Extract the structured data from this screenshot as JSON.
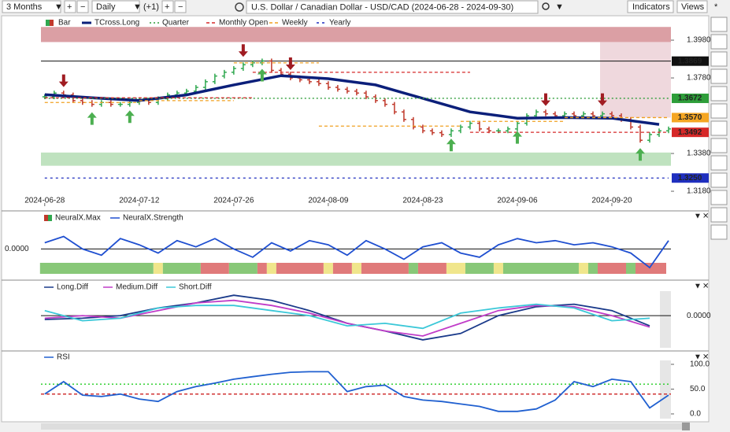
{
  "toolbar": {
    "period": "3 Months",
    "interval": "Daily",
    "offset": "(+1)",
    "title": "U.S. Dollar / Canadian Dollar - USD/CAD (2024-06-28 - 2024-09-30)",
    "indicators": "Indicators",
    "views": "Views",
    "pin": "*"
  },
  "x_axis": {
    "xlim": [
      -0.4,
      66.25
    ],
    "xticks": [
      {
        "value": 0,
        "label": "2024-06-28"
      },
      {
        "value": 10,
        "label": "2024-07-12"
      },
      {
        "value": 20,
        "label": "2024-07-26"
      },
      {
        "value": 30,
        "label": "2024-08-09"
      },
      {
        "value": 40,
        "label": "2024-08-23"
      },
      {
        "value": 50,
        "label": "2024-09-06"
      },
      {
        "value": 60,
        "label": "2024-09-20"
      }
    ]
  },
  "price_panel": {
    "ylim": [
      1.3101,
      1.4051
    ],
    "yticks": [
      {
        "value": 1.398,
        "label": "1.3980"
      },
      {
        "value": 1.378,
        "label": "1.3780"
      },
      {
        "value": 1.338,
        "label": "1.3380"
      },
      {
        "value": 1.318,
        "label": "1.3180"
      }
    ],
    "zones": [
      {
        "from": 1.405,
        "to": 1.397,
        "color": "#cf7f86"
      },
      {
        "from": 1.3385,
        "to": 1.3315,
        "color": "#a9d8a9"
      }
    ],
    "series": [
      {
        "name": "Bar",
        "type": "bar",
        "up_color": "#2fa84f",
        "down_color": "#c0392b",
        "values": [
          1.368,
          1.37,
          1.369,
          1.366,
          1.365,
          1.364,
          1.365,
          1.364,
          1.364,
          1.365,
          1.366,
          1.365,
          1.367,
          1.369,
          1.37,
          1.371,
          1.373,
          1.376,
          1.379,
          1.381,
          1.383,
          1.385,
          1.386,
          1.387,
          1.382,
          1.38,
          1.378,
          1.377,
          1.376,
          1.375,
          1.373,
          1.372,
          1.371,
          1.37,
          1.368,
          1.366,
          1.364,
          1.36,
          1.356,
          1.352,
          1.35,
          1.349,
          1.348,
          1.35,
          1.352,
          1.354,
          1.351,
          1.35,
          1.35,
          1.351,
          1.354,
          1.358,
          1.36,
          1.359,
          1.358,
          1.359,
          1.358,
          1.359,
          1.358,
          1.359,
          1.358,
          1.356,
          1.352,
          1.345,
          1.348,
          1.35,
          1.351
        ]
      },
      {
        "name": "TCross.Long",
        "type": "line",
        "color": "#0b1f7a",
        "x": [
          0,
          5,
          10,
          15,
          20,
          25,
          30,
          35,
          40,
          45,
          50,
          55,
          60,
          65
        ],
        "values": [
          1.3692,
          1.3675,
          1.366,
          1.369,
          1.3743,
          1.3792,
          1.3776,
          1.3743,
          1.3672,
          1.36,
          1.3567,
          1.357,
          1.3567,
          1.3534
        ]
      },
      {
        "name": "Quarter",
        "type": "step",
        "color": "#2e9e3a",
        "dash": "2 3",
        "segments": [
          [
            0,
            66,
            1.3672
          ]
        ]
      },
      {
        "name": "Monthly Open",
        "type": "step",
        "color": "#d62828",
        "dash": "4 3",
        "segments": [
          [
            0,
            22,
            1.3675
          ],
          [
            22,
            45,
            1.381
          ],
          [
            45,
            66,
            1.3492
          ]
        ]
      },
      {
        "name": "Weekly",
        "type": "step",
        "color": "#f0a020",
        "dash": "4 3",
        "segments": [
          [
            0,
            10,
            1.365
          ],
          [
            10,
            20,
            1.366
          ],
          [
            20,
            29,
            1.386
          ],
          [
            29,
            44,
            1.3525
          ],
          [
            44,
            55,
            1.355
          ],
          [
            55,
            66,
            1.357
          ]
        ]
      },
      {
        "name": "Yearly",
        "type": "step",
        "color": "#1f2fbf",
        "dash": "3 4",
        "segments": [
          [
            0,
            66,
            1.325
          ]
        ]
      }
    ],
    "levels": [
      {
        "value": 1.3869,
        "color": "#111111",
        "line": true
      },
      {
        "value": 1.3672,
        "color": "#2e9e3a"
      },
      {
        "value": 1.357,
        "label": "1.3570",
        "color": "#f5a623"
      },
      {
        "value": 1.3492,
        "color": "#d62828"
      },
      {
        "value": 1.325,
        "label": "1.3250",
        "color": "#1f2fbf"
      }
    ]
  },
  "neural_panel": {
    "ylim": [
      -1.2,
      1.0
    ],
    "yticks": [
      {
        "value": 0,
        "label": "0.0000"
      }
    ],
    "legend": [
      "NeuralX.Max"
    ],
    "series": [
      {
        "name": "NeuralX.Strength",
        "color": "#1f4fd0",
        "x": [
          0,
          2,
          4,
          6,
          8,
          10,
          12,
          14,
          16,
          18,
          20,
          22,
          24,
          26,
          28,
          30,
          32,
          34,
          36,
          38,
          40,
          42,
          44,
          46,
          48,
          50,
          52,
          54,
          56,
          58,
          60,
          62,
          64,
          66
        ],
        "values": [
          0.3,
          0.6,
          0,
          -0.3,
          0.5,
          0.2,
          -0.2,
          0.4,
          0.1,
          0.5,
          0,
          -0.4,
          0.3,
          -0.1,
          0.4,
          0.2,
          -0.3,
          0.4,
          0,
          -0.5,
          0.1,
          0.3,
          -0.2,
          -0.4,
          0.2,
          0.5,
          0.3,
          0.4,
          0.2,
          0.3,
          0.1,
          -0.2,
          -0.9,
          0.4
        ]
      }
    ]
  },
  "diff_panel": {
    "ylim": [
      -1.2,
      0.9
    ],
    "yticks": [
      {
        "value": 0,
        "label": "0.0000"
      }
    ],
    "series": [
      {
        "name": "Long.Diff",
        "color": "#1a3a8a",
        "x": [
          0,
          4,
          8,
          12,
          16,
          20,
          24,
          28,
          32,
          36,
          40,
          44,
          48,
          52,
          56,
          60,
          64
        ],
        "values": [
          -0.15,
          -0.1,
          0,
          0.3,
          0.5,
          0.8,
          0.6,
          0.2,
          -0.3,
          -0.6,
          -0.95,
          -0.7,
          0,
          0.35,
          0.45,
          0.2,
          -0.4
        ]
      },
      {
        "name": "Medium.Diff",
        "color": "#c03cc8",
        "x": [
          0,
          4,
          8,
          12,
          16,
          20,
          24,
          28,
          32,
          36,
          40,
          44,
          48,
          52,
          56,
          60,
          64
        ],
        "values": [
          -0.1,
          0,
          -0.1,
          0.2,
          0.5,
          0.6,
          0.4,
          0.1,
          -0.3,
          -0.6,
          -0.8,
          -0.3,
          0.2,
          0.4,
          0.35,
          0,
          -0.45
        ]
      },
      {
        "name": "Short.Diff",
        "color": "#3cc8d8",
        "x": [
          0,
          4,
          8,
          12,
          16,
          20,
          24,
          28,
          32,
          36,
          40,
          44,
          48,
          52,
          56,
          60,
          64
        ],
        "values": [
          0.2,
          -0.2,
          -0.1,
          0.3,
          0.4,
          0.4,
          0.2,
          0,
          -0.4,
          -0.3,
          -0.5,
          0.1,
          0.3,
          0.45,
          0.3,
          -0.2,
          -0.1
        ]
      }
    ]
  },
  "rsi_panel": {
    "ylim": [
      -6.35,
      104.76
    ],
    "yticks": [
      {
        "value": 100,
        "label": "100.0"
      },
      {
        "value": 50,
        "label": "50.0"
      },
      {
        "value": 0,
        "label": "0.0"
      }
    ],
    "levels": [
      {
        "value": 60,
        "color": "#22cc22",
        "dash": "2 3"
      },
      {
        "value": 40,
        "color": "#cc2222",
        "dash": "4 3"
      }
    ],
    "series": [
      {
        "name": "RSI",
        "color": "#2060d0",
        "x": [
          0,
          2,
          4,
          6,
          8,
          10,
          12,
          14,
          16,
          18,
          20,
          22,
          24,
          26,
          28,
          30,
          32,
          34,
          36,
          38,
          40,
          42,
          44,
          46,
          48,
          50,
          52,
          54,
          56,
          58,
          60,
          62,
          64,
          66
        ],
        "values": [
          40,
          65,
          38,
          35,
          40,
          30,
          25,
          45,
          55,
          62,
          70,
          75,
          80,
          84,
          85,
          85,
          45,
          55,
          58,
          35,
          28,
          25,
          20,
          15,
          5,
          5,
          10,
          28,
          65,
          55,
          70,
          65,
          12,
          38
        ]
      }
    ]
  }
}
